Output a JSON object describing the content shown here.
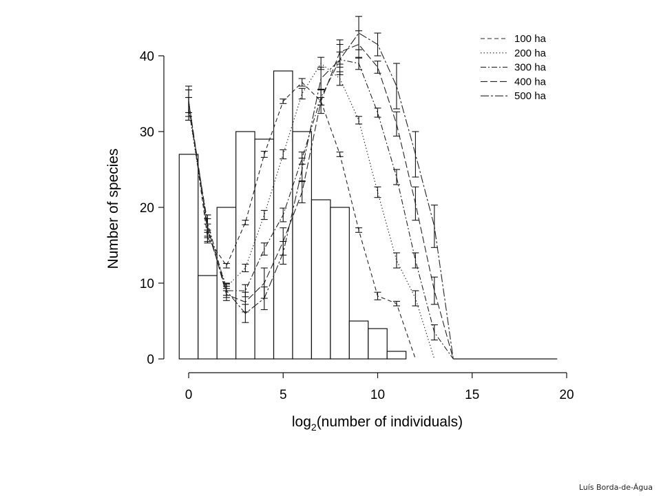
{
  "chart_data": {
    "type": "bar",
    "ylabel": "Number of species",
    "xlabel_prefix": "log",
    "xlabel_sub": "2",
    "xlabel_rest": "(number of individuals)",
    "xlim": [
      0,
      20
    ],
    "ylim": [
      0,
      40
    ],
    "x_ticks": [
      "0",
      "5",
      "10",
      "15",
      "20"
    ],
    "y_ticks": [
      "0",
      "10",
      "20",
      "30",
      "40"
    ],
    "grid": false,
    "legend_position": "top-right",
    "histogram": {
      "bin_edges": [
        -0.5,
        0.5,
        1.5,
        2.5,
        3.5,
        4.5,
        5.5,
        6.5,
        7.5,
        8.5,
        9.5,
        10.5,
        11.5
      ],
      "values": [
        27,
        11,
        20,
        30,
        29,
        38,
        30,
        21,
        20,
        5,
        4,
        1
      ]
    },
    "baseline": {
      "x_from": 14,
      "x_to": 19.5,
      "y": 0
    },
    "series": [
      {
        "name": "100 ha",
        "dash": "6 4",
        "x": [
          0,
          1,
          2,
          3,
          4,
          5,
          6,
          7,
          8,
          9,
          10,
          11,
          12
        ],
        "y": [
          34,
          16,
          12.3,
          18,
          27,
          34,
          36.5,
          34,
          27,
          17,
          8.3,
          7.3,
          0
        ],
        "err": [
          1.5,
          0.7,
          0.3,
          0.3,
          0.4,
          0.3,
          0.5,
          0.5,
          0.3,
          0.3,
          0.5,
          0.3,
          0
        ]
      },
      {
        "name": "200 ha",
        "dash": "1.5 3",
        "x": [
          0,
          1,
          2,
          3,
          4,
          5,
          6,
          7,
          8,
          9,
          10,
          11,
          12,
          13
        ],
        "y": [
          33,
          17,
          9.5,
          12,
          19,
          27,
          35,
          39,
          37,
          31.5,
          22,
          13,
          8,
          0
        ],
        "err": [
          1.5,
          0.8,
          0.5,
          0.5,
          0.6,
          0.6,
          0.7,
          0.8,
          0.9,
          0.5,
          0.7,
          1.0,
          1.0,
          0
        ]
      },
      {
        "name": "300 ha",
        "dash": "8 3 2 3",
        "x": [
          0,
          1,
          2,
          3,
          4,
          5,
          6,
          7,
          8,
          9,
          10,
          11,
          12,
          13,
          14
        ],
        "y": [
          33,
          18,
          9,
          9,
          14.5,
          19,
          26.5,
          34.5,
          39.5,
          39,
          32.5,
          24,
          13,
          3.5,
          0
        ],
        "err": [
          1.5,
          1.0,
          0.6,
          0.8,
          0.8,
          0.9,
          0.8,
          1.0,
          1.0,
          0.8,
          0.6,
          1.0,
          1.0,
          1.0,
          0
        ]
      },
      {
        "name": "400 ha",
        "dash": "10 4",
        "x": [
          0,
          1,
          2,
          3,
          4,
          5,
          6,
          7,
          8,
          9,
          10,
          11,
          12,
          13,
          14
        ],
        "y": [
          34,
          17.5,
          8.5,
          7.5,
          10,
          15.5,
          22,
          34,
          40.5,
          41.5,
          38.5,
          31,
          20.5,
          9,
          0
        ],
        "err": [
          1.5,
          1.5,
          0.8,
          1.3,
          2.0,
          1.8,
          1.4,
          1.6,
          1.6,
          1.8,
          0.8,
          1.6,
          2.2,
          1.8,
          0
        ]
      },
      {
        "name": "500 ha",
        "dash": "12 3 3 3",
        "x": [
          0,
          1,
          2,
          3,
          4,
          5,
          6,
          7,
          8,
          9,
          10,
          11,
          12,
          13,
          14
        ],
        "y": [
          34,
          17,
          9,
          6,
          8,
          14,
          25,
          37,
          39.5,
          43,
          41.5,
          36,
          27,
          17.5,
          0
        ],
        "err": [
          2.0,
          1.5,
          0.9,
          1.2,
          1.5,
          1.5,
          1.5,
          1.5,
          2.0,
          2.2,
          1.5,
          3.0,
          3.0,
          2.8,
          0
        ]
      }
    ]
  },
  "credit": "Luís Borda-de-Água"
}
